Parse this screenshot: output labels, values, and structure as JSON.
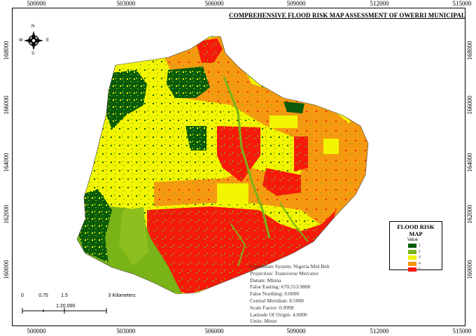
{
  "map": {
    "title": "COMPREHENSIVE FLOOD RISK MAP ASSESSMENT OF OWERRI MUNICIPAL",
    "x_ticks": [
      "500000",
      "503000",
      "506000",
      "509000",
      "512000",
      "515000"
    ],
    "y_ticks": [
      "168000",
      "166000",
      "164000",
      "162000",
      "160000"
    ],
    "compass": {
      "n": "N",
      "s": "S",
      "e": "E",
      "w": "W"
    }
  },
  "legend": {
    "title": "FLOOD RISK MAP",
    "subtitle": "Value",
    "items": [
      {
        "label": "1",
        "color": "#0a5c0a"
      },
      {
        "label": "2",
        "color": "#7ab317"
      },
      {
        "label": "3",
        "color": "#f2f500"
      },
      {
        "label": "4",
        "color": "#f59a10"
      },
      {
        "label": "5",
        "color": "#f51a0a"
      }
    ]
  },
  "projection_info": {
    "lines": [
      "Coordinate System: Nigeria Mid Belt",
      "Projection: Transverse Mercator",
      "Datum: Minna",
      "False Easting: 670,553.9800",
      "False Northing: 0.0000",
      "Central Meridian: 8.5000",
      "Scale Factor: 0.9998",
      "Latitude Of Origin: 4.0000",
      "Units: Meter"
    ]
  },
  "scale_bar": {
    "ratio": "1:20,000",
    "labels": [
      "0",
      "0.75",
      "1.5",
      "3 Kilometers"
    ]
  }
}
